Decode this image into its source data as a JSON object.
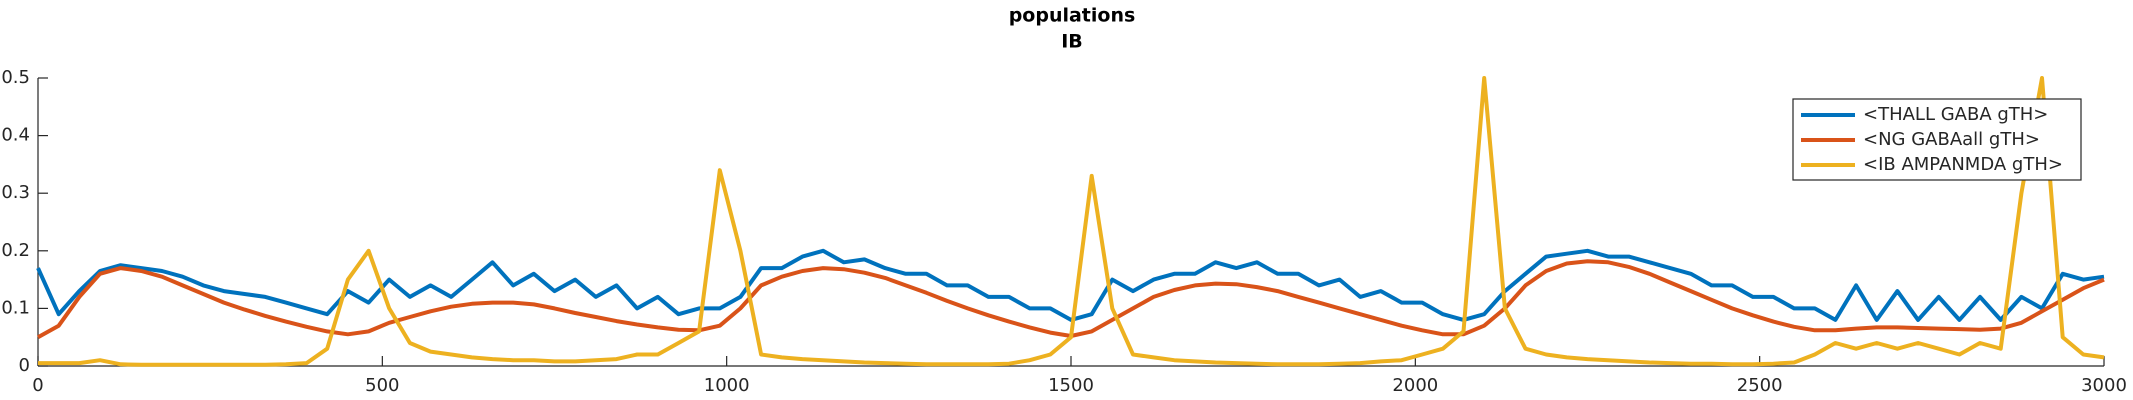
{
  "chart_data": {
    "type": "line",
    "title": "populations",
    "subtitle": "IB",
    "x": [
      0,
      30,
      60,
      90,
      120,
      150,
      180,
      210,
      240,
      270,
      300,
      330,
      360,
      390,
      420,
      450,
      480,
      510,
      540,
      570,
      600,
      630,
      660,
      690,
      720,
      750,
      780,
      810,
      840,
      870,
      900,
      930,
      960,
      990,
      1020,
      1050,
      1080,
      1110,
      1140,
      1170,
      1200,
      1230,
      1260,
      1290,
      1320,
      1350,
      1380,
      1410,
      1440,
      1470,
      1500,
      1530,
      1560,
      1590,
      1620,
      1650,
      1680,
      1710,
      1740,
      1770,
      1800,
      1830,
      1860,
      1890,
      1920,
      1950,
      1980,
      2010,
      2040,
      2070,
      2100,
      2130,
      2160,
      2190,
      2220,
      2250,
      2280,
      2310,
      2340,
      2370,
      2400,
      2430,
      2460,
      2490,
      2520,
      2550,
      2580,
      2610,
      2640,
      2670,
      2700,
      2730,
      2760,
      2790,
      2820,
      2850,
      2880,
      2910,
      2940,
      2970,
      3000
    ],
    "series": [
      {
        "name": "<THALL GABA gTH>",
        "color": "#0072BD",
        "values": [
          0.17,
          0.09,
          0.13,
          0.165,
          0.175,
          0.17,
          0.165,
          0.155,
          0.14,
          0.13,
          0.125,
          0.12,
          0.11,
          0.1,
          0.09,
          0.13,
          0.11,
          0.15,
          0.12,
          0.14,
          0.12,
          0.15,
          0.18,
          0.14,
          0.16,
          0.13,
          0.15,
          0.12,
          0.14,
          0.1,
          0.12,
          0.09,
          0.1,
          0.1,
          0.12,
          0.17,
          0.17,
          0.19,
          0.2,
          0.18,
          0.185,
          0.17,
          0.16,
          0.16,
          0.14,
          0.14,
          0.12,
          0.12,
          0.1,
          0.1,
          0.08,
          0.09,
          0.15,
          0.13,
          0.15,
          0.16,
          0.16,
          0.18,
          0.17,
          0.18,
          0.16,
          0.16,
          0.14,
          0.15,
          0.12,
          0.13,
          0.11,
          0.11,
          0.09,
          0.08,
          0.09,
          0.13,
          0.16,
          0.19,
          0.195,
          0.2,
          0.19,
          0.19,
          0.18,
          0.17,
          0.16,
          0.14,
          0.14,
          0.12,
          0.12,
          0.1,
          0.1,
          0.08,
          0.14,
          0.08,
          0.13,
          0.08,
          0.12,
          0.08,
          0.12,
          0.08,
          0.12,
          0.1,
          0.16,
          0.15,
          0.155
        ]
      },
      {
        "name": "<NG GABAall gTH>",
        "color": "#D95319",
        "values": [
          0.05,
          0.07,
          0.12,
          0.16,
          0.17,
          0.165,
          0.155,
          0.14,
          0.125,
          0.11,
          0.098,
          0.087,
          0.077,
          0.068,
          0.06,
          0.055,
          0.06,
          0.075,
          0.085,
          0.095,
          0.103,
          0.108,
          0.11,
          0.11,
          0.107,
          0.1,
          0.092,
          0.085,
          0.078,
          0.072,
          0.067,
          0.063,
          0.062,
          0.07,
          0.1,
          0.14,
          0.155,
          0.165,
          0.17,
          0.168,
          0.162,
          0.153,
          0.14,
          0.127,
          0.113,
          0.1,
          0.088,
          0.077,
          0.067,
          0.058,
          0.052,
          0.06,
          0.08,
          0.1,
          0.12,
          0.132,
          0.14,
          0.143,
          0.142,
          0.137,
          0.13,
          0.12,
          0.11,
          0.1,
          0.09,
          0.08,
          0.07,
          0.062,
          0.055,
          0.055,
          0.07,
          0.1,
          0.14,
          0.165,
          0.178,
          0.182,
          0.18,
          0.172,
          0.16,
          0.145,
          0.13,
          0.115,
          0.1,
          0.088,
          0.077,
          0.068,
          0.062,
          0.062,
          0.065,
          0.067,
          0.067,
          0.066,
          0.065,
          0.064,
          0.063,
          0.065,
          0.075,
          0.095,
          0.115,
          0.135,
          0.15
        ]
      },
      {
        "name": "<IB AMPANMDA gTH>",
        "color": "#EDB120",
        "values": [
          0.005,
          0.005,
          0.005,
          0.01,
          0.003,
          0.002,
          0.002,
          0.002,
          0.002,
          0.002,
          0.002,
          0.002,
          0.003,
          0.005,
          0.03,
          0.15,
          0.2,
          0.1,
          0.04,
          0.025,
          0.02,
          0.015,
          0.012,
          0.01,
          0.01,
          0.008,
          0.008,
          0.01,
          0.012,
          0.02,
          0.02,
          0.04,
          0.06,
          0.34,
          0.2,
          0.02,
          0.015,
          0.012,
          0.01,
          0.008,
          0.006,
          0.005,
          0.004,
          0.003,
          0.003,
          0.003,
          0.003,
          0.004,
          0.01,
          0.02,
          0.05,
          0.33,
          0.1,
          0.02,
          0.015,
          0.01,
          0.008,
          0.006,
          0.005,
          0.004,
          0.003,
          0.003,
          0.003,
          0.004,
          0.005,
          0.008,
          0.01,
          0.02,
          0.03,
          0.06,
          0.5,
          0.1,
          0.03,
          0.02,
          0.015,
          0.012,
          0.01,
          0.008,
          0.006,
          0.005,
          0.004,
          0.004,
          0.003,
          0.003,
          0.004,
          0.006,
          0.02,
          0.04,
          0.03,
          0.04,
          0.03,
          0.04,
          0.03,
          0.02,
          0.04,
          0.03,
          0.3,
          0.5,
          0.05,
          0.02,
          0.015
        ]
      }
    ],
    "xlim": [
      0,
      3000
    ],
    "xticks": [
      0,
      500,
      1000,
      1500,
      2000,
      2500,
      3000
    ],
    "ylim": [
      0,
      0.5
    ],
    "yticks": [
      0,
      0.1,
      0.2,
      0.3,
      0.4,
      0.5
    ],
    "legend": "upper right"
  }
}
